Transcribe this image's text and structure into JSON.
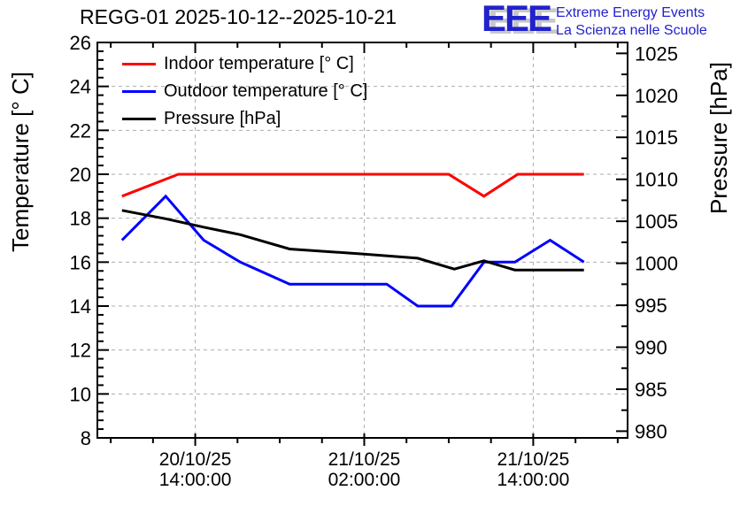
{
  "page": {
    "background": "#ffffff"
  },
  "header": {
    "title": "REGG-01 2025-10-12--2025-10-21"
  },
  "logo": {
    "acronym": "EEE",
    "line1": "Extreme Energy Events",
    "line2": "La Scienza nelle Scuole",
    "color": "#2222cc",
    "shadow_color": "#c8c8c8"
  },
  "legend": {
    "entries": [
      {
        "label": "Indoor temperature [° C]",
        "color": "#ff0000"
      },
      {
        "label": "Outdoor temperature [° C]",
        "color": "#0000ff"
      },
      {
        "label": "Pressure [hPa]",
        "color": "#000000"
      }
    ]
  },
  "chart_data": {
    "type": "line",
    "title": "REGG-01 2025-10-12--2025-10-21",
    "x_axis": {
      "kind": "time",
      "unit_note": "hours since 2025-10-20 00:00",
      "range": [
        7.05,
        44.7
      ],
      "major_ticks": [
        {
          "h": 14,
          "label_date": "20/10/25",
          "label_time": "14:00:00"
        },
        {
          "h": 26,
          "label_date": "21/10/25",
          "label_time": "02:00:00"
        },
        {
          "h": 38,
          "label_date": "21/10/25",
          "label_time": "14:00:00"
        }
      ],
      "minor_step_hours": 3,
      "grid": true
    },
    "y_left": {
      "label": "Temperature [° C]",
      "range": [
        8,
        26
      ],
      "major_step": 2,
      "minor_step": 0.4,
      "grid": true
    },
    "y_right": {
      "label": "Pressure [hPa]",
      "range": [
        979.2,
        1026.3
      ],
      "tick_min": 980,
      "tick_max": 1025,
      "major_step": 5,
      "minor_step": 2.5,
      "grid": false
    },
    "grid_color": "#adadad",
    "legend_position": "top-left-inside",
    "series": [
      {
        "name": "Indoor temperature [° C]",
        "axis": "left",
        "color": "#ff0000",
        "points": [
          [
            8.8,
            19
          ],
          [
            12.8,
            20
          ],
          [
            32.0,
            20
          ],
          [
            34.5,
            19
          ],
          [
            36.9,
            20
          ],
          [
            41.6,
            20
          ]
        ]
      },
      {
        "name": "Outdoor temperature [° C]",
        "axis": "left",
        "color": "#0000ff",
        "points": [
          [
            8.8,
            17
          ],
          [
            11.9,
            19
          ],
          [
            14.6,
            17
          ],
          [
            17.2,
            16
          ],
          [
            20.7,
            15
          ],
          [
            27.6,
            15
          ],
          [
            29.8,
            14
          ],
          [
            32.2,
            14
          ],
          [
            34.5,
            16
          ],
          [
            36.7,
            16
          ],
          [
            39.2,
            17
          ],
          [
            41.6,
            16
          ]
        ]
      },
      {
        "name": "Pressure [hPa]",
        "axis": "right",
        "color": "#000000",
        "points": [
          [
            8.8,
            1006.3
          ],
          [
            11.9,
            1005.3
          ],
          [
            14.6,
            1004.3
          ],
          [
            17.2,
            1003.4
          ],
          [
            20.7,
            1001.7
          ],
          [
            26.0,
            1001.1
          ],
          [
            29.8,
            1000.6
          ],
          [
            32.4,
            999.3
          ],
          [
            34.5,
            1000.3
          ],
          [
            36.7,
            999.2
          ],
          [
            41.6,
            999.2
          ]
        ]
      }
    ]
  }
}
